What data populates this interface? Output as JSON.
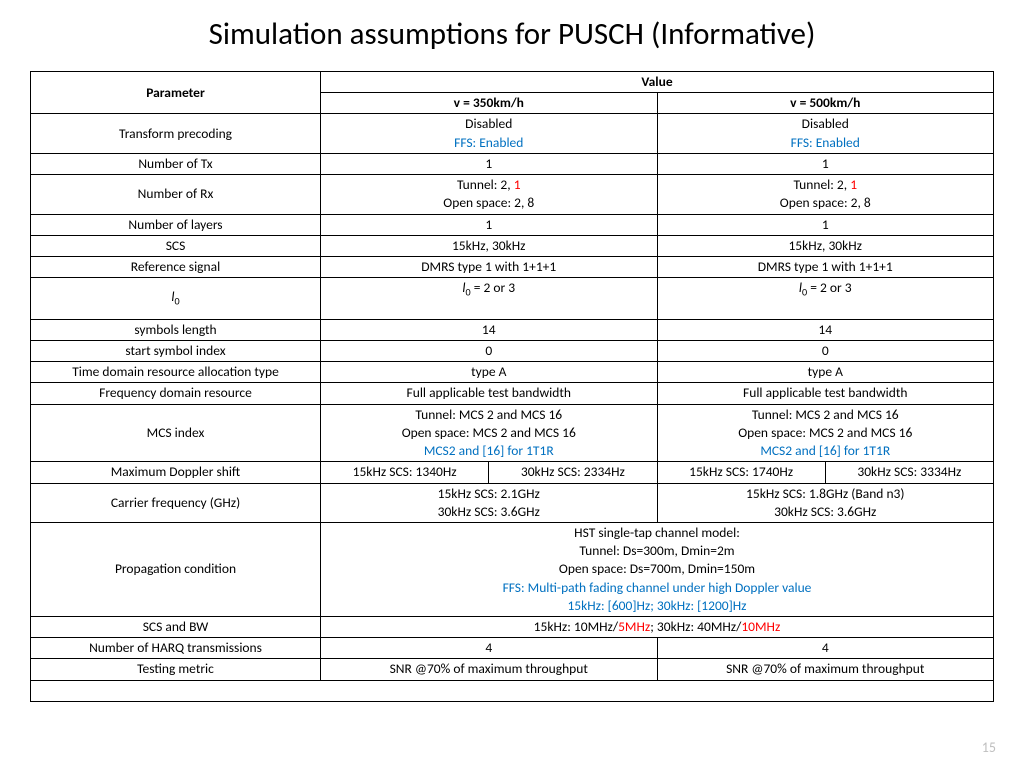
{
  "title": "Simulation assumptions for PUSCH (Informative)",
  "page_number": "15",
  "colors": {
    "blue": "#0070c0",
    "red": "#ff0000",
    "pagenum": "#bfbfbf",
    "border": "#000000",
    "bg": "#ffffff"
  },
  "typography": {
    "title_fontsize": 31,
    "table_fontsize": 13.5,
    "font_family": "Calibri"
  },
  "headers": {
    "param": "Parameter",
    "value": "Value",
    "v350": "v = 350km/h",
    "v500": "v = 500km/h"
  },
  "rows": {
    "transform_precoding": {
      "label": "Transform precoding",
      "v350_a": "Disabled",
      "v350_b": "FFS: Enabled",
      "v500_a": "Disabled",
      "v500_b": "FFS: Enabled"
    },
    "num_tx": {
      "label": "Number of Tx",
      "v350": "1",
      "v500": "1"
    },
    "num_rx": {
      "label": "Number of Rx",
      "v350_a_pre": "Tunnel: 2, ",
      "v350_a_red": "1",
      "v350_b": "Open space: 2, 8",
      "v500_a_pre": "Tunnel: 2, ",
      "v500_a_red": "1",
      "v500_b": "Open space: 2, 8"
    },
    "num_layers": {
      "label": "Number of layers",
      "v350": "1",
      "v500": "1"
    },
    "scs": {
      "label": "SCS",
      "v350": "15kHz, 30kHz",
      "v500": "15kHz, 30kHz"
    },
    "ref_signal": {
      "label": "Reference signal",
      "v350": "DMRS type 1 with 1+1+1",
      "v500": "DMRS type 1 with 1+1+1"
    },
    "l0": {
      "label_l": "l",
      "label_sub": "0",
      "v350_l": "l",
      "v350_sub": "0",
      "v350_tail": " = 2 or 3",
      "v500_l": "l",
      "v500_sub": "0",
      "v500_tail": " = 2 or 3"
    },
    "sym_len": {
      "label": "symbols length",
      "v350": "14",
      "v500": "14"
    },
    "start_sym": {
      "label": "start symbol index",
      "v350": "0",
      "v500": "0"
    },
    "td_alloc": {
      "label": "Time domain resource allocation type",
      "v350": "type A",
      "v500": "type A"
    },
    "fd_res": {
      "label": "Frequency domain resource",
      "v350": "Full applicable test bandwidth",
      "v500": "Full applicable test bandwidth"
    },
    "mcs": {
      "label": "MCS index",
      "v350_a": "Tunnel: MCS 2 and MCS 16",
      "v350_b": "Open space: MCS 2 and MCS 16",
      "v350_c": "MCS2 and [16] for 1T1R",
      "v500_a": "Tunnel: MCS 2 and MCS 16",
      "v500_b": "Open space: MCS 2 and MCS 16",
      "v500_c": "MCS2 and [16] for 1T1R"
    },
    "doppler": {
      "label": "Maximum Doppler shift",
      "v350_15": "15kHz SCS: 1340Hz",
      "v350_30": "30kHz SCS: 2334Hz",
      "v500_15": "15kHz SCS: 1740Hz",
      "v500_30": "30kHz SCS: 3334Hz"
    },
    "carrier": {
      "label": "Carrier frequency (GHz)",
      "v350_a": "15kHz SCS: 2.1GHz",
      "v350_b": "30kHz SCS: 3.6GHz",
      "v500_a": "15kHz SCS: 1.8GHz (Band n3)",
      "v500_b": "30kHz SCS: 3.6GHz"
    },
    "prop": {
      "label": "Propagation condition",
      "a": "HST single-tap channel model:",
      "b": "Tunnel: Ds=300m, Dmin=2m",
      "c": "Open space: Ds=700m, Dmin=150m",
      "d": "FFS: Multi-path fading channel under high Doppler value",
      "e": "15kHz: [600]Hz; 30kHz: [1200]Hz"
    },
    "scs_bw": {
      "label": "SCS and BW",
      "pre1": "15kHz: 10MHz/",
      "red1": "5MHz",
      "mid": "; 30kHz: 40MHz/",
      "red2": "10MHz"
    },
    "harq": {
      "label": "Number of HARQ transmissions",
      "v350": "4",
      "v500": "4"
    },
    "metric": {
      "label": "Testing metric",
      "v350": "SNR @70% of maximum throughput",
      "v500": "SNR @70% of maximum throughput"
    }
  }
}
